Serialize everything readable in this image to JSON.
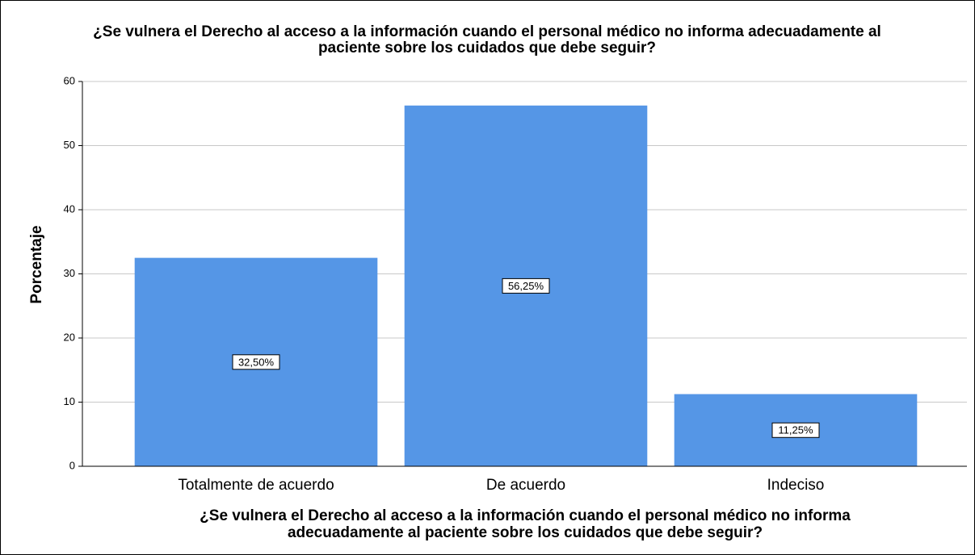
{
  "chart_data": {
    "type": "bar",
    "title": [
      "¿Se vulnera el Derecho al acceso a la información cuando el personal médico no informa adecuadamente al",
      "paciente sobre los cuidados que debe seguir?"
    ],
    "x_label": [
      "¿Se vulnera el Derecho al acceso a la información cuando el personal médico no informa",
      "adecuadamente al paciente sobre los cuidados que debe seguir?"
    ],
    "y_label": "Porcentaje",
    "categories": [
      "Totalmente de acuerdo",
      "De acuerdo",
      "Indeciso"
    ],
    "values": [
      32.5,
      56.25,
      11.25
    ],
    "value_labels": [
      "32,50%",
      "56,25%",
      "11,25%"
    ],
    "color": "#5596e6",
    "ylim": [
      0,
      60
    ],
    "yticks": [
      0,
      10,
      20,
      30,
      40,
      50,
      60
    ],
    "grid": true
  }
}
